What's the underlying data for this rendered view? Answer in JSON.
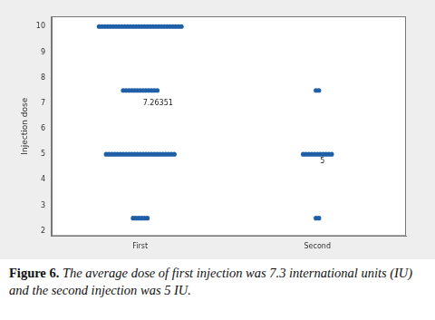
{
  "chart_data": {
    "type": "dotplot",
    "y_label": "Injection dose",
    "categories": [
      "First",
      "Second"
    ],
    "color": "#1f5fa8",
    "values": [
      [
        10,
        10,
        10,
        10,
        10,
        10,
        10,
        10,
        10,
        10,
        10,
        10,
        10,
        10,
        10,
        10,
        10,
        10,
        10,
        10,
        10,
        10,
        10,
        10,
        10,
        10,
        10,
        10,
        10,
        10,
        7.5,
        7.5,
        7.5,
        7.5,
        7.5,
        7.5,
        7.5,
        7.5,
        7.5,
        7.5,
        7.5,
        7.5,
        7.5,
        5,
        5,
        5,
        5,
        5,
        5,
        5,
        5,
        5,
        5,
        5,
        5,
        5,
        5,
        5,
        5,
        5,
        5,
        5,
        5,
        5,
        5,
        5,
        5,
        5,
        2.5,
        2.5,
        2.5,
        2.5,
        2.5,
        2.5
      ],
      [
        7.5,
        7.5,
        5,
        5,
        5,
        5,
        5,
        5,
        5,
        5,
        5,
        5,
        5,
        2.5,
        2.5
      ]
    ],
    "annotations": [
      {
        "category": "First",
        "value": 7.26351,
        "text": "7.26351"
      },
      {
        "category": "Second",
        "value": 5,
        "text": "5"
      }
    ],
    "ylim": [
      1.8,
      10.4
    ],
    "yticks": [
      2,
      3,
      4,
      5,
      6,
      7,
      8,
      9,
      10
    ],
    "grid": false,
    "caption": {
      "label": "Figure 6.",
      "text": "The average dose of first injection was 7.3 international units (IU) and the second injection was 5 IU."
    }
  }
}
